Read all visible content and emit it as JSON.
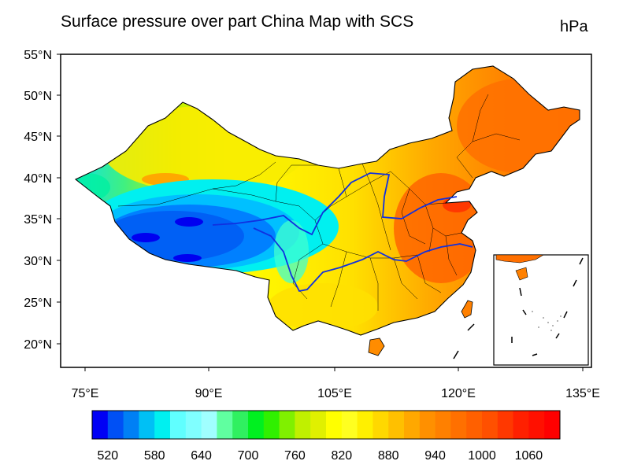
{
  "header": {
    "title": "Surface pressure over part China Map with SCS",
    "units": "hPa"
  },
  "map": {
    "lon_ticks": [
      "75°E",
      "90°E",
      "105°E",
      "120°E",
      "135°E"
    ],
    "lat_ticks": [
      "55°N",
      "50°N",
      "45°N",
      "40°N",
      "35°N",
      "30°N",
      "25°N",
      "20°N"
    ],
    "lon_range": [
      72,
      137
    ],
    "lat_range": [
      17,
      55
    ],
    "field_units": "hPa",
    "inset": "South China Sea islands"
  },
  "colorbar": {
    "labels": [
      "520",
      "580",
      "640",
      "700",
      "760",
      "820",
      "880",
      "940",
      "1000",
      "1060"
    ],
    "colors": [
      "#0000f5",
      "#0050f5",
      "#0080f5",
      "#00c0f5",
      "#00f0f0",
      "#60ffff",
      "#80ffff",
      "#a0ffff",
      "#60ffa0",
      "#30f060",
      "#00f020",
      "#30f000",
      "#80f000",
      "#c0f000",
      "#e0f000",
      "#ffff00",
      "#ffff20",
      "#fff000",
      "#ffd800",
      "#ffc000",
      "#ffa800",
      "#ff9000",
      "#ff8000",
      "#ff7000",
      "#ff6000",
      "#ff5000",
      "#ff3800",
      "#ff2000",
      "#ff1000",
      "#ff0000"
    ]
  }
}
